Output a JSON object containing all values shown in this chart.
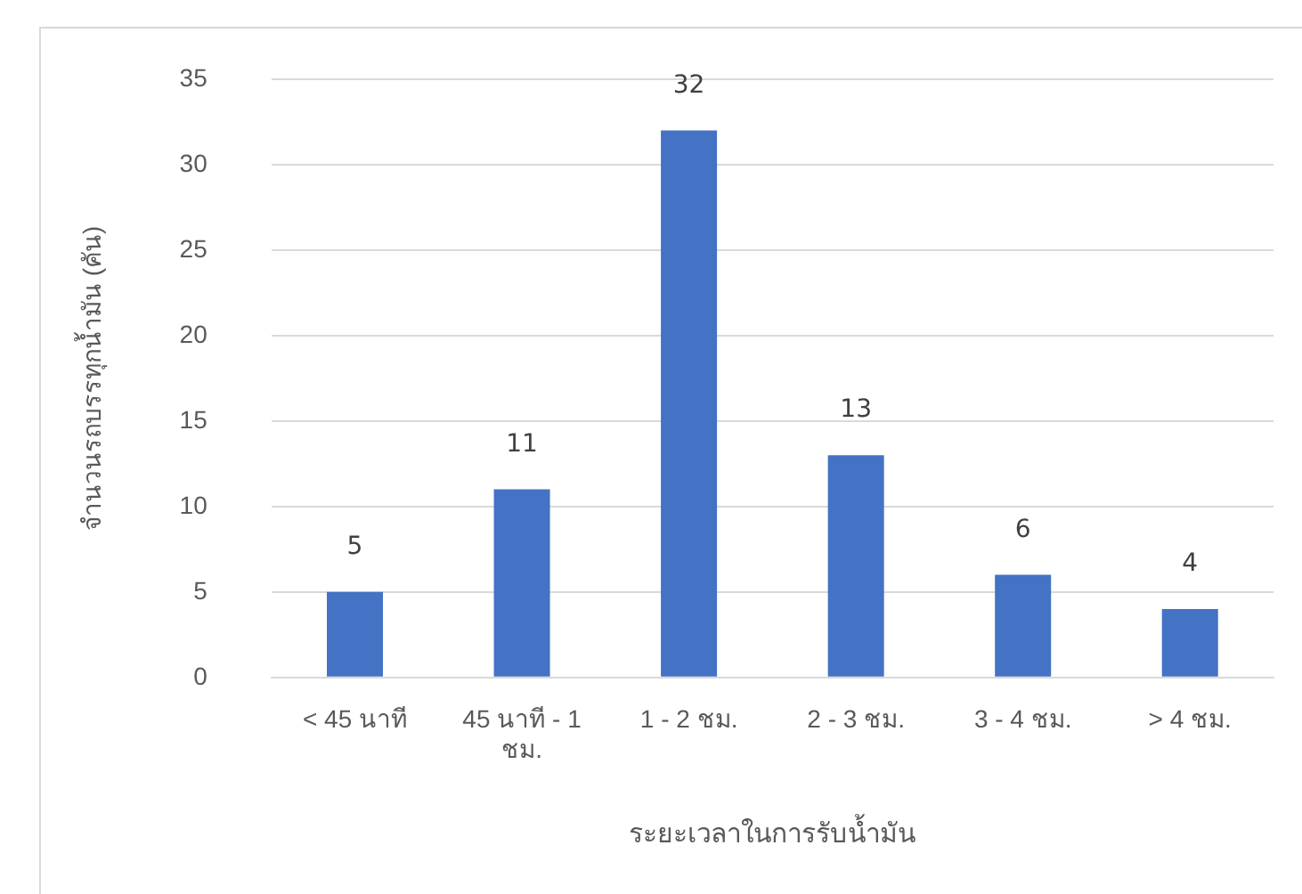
{
  "chart_data": {
    "type": "bar",
    "xlabel": "ระยะเวลาในการรับน้ำมัน",
    "ylabel": "จำนวนรถบรรทุกน้ำมัน (คัน)",
    "categories": [
      "< 45 นาที",
      "45 นาที - 1 ชม.",
      "1 - 2 ชม.",
      "2 - 3 ชม.",
      "3 - 4 ชม.",
      "> 4 ชม."
    ],
    "values": [
      5,
      11,
      32,
      13,
      6,
      4
    ],
    "color": "#4472c4",
    "ylim": [
      0,
      35
    ],
    "yticks": [
      0,
      5,
      10,
      15,
      20,
      25,
      30,
      35
    ],
    "grid": "y",
    "data_labels": true,
    "legend": false
  }
}
